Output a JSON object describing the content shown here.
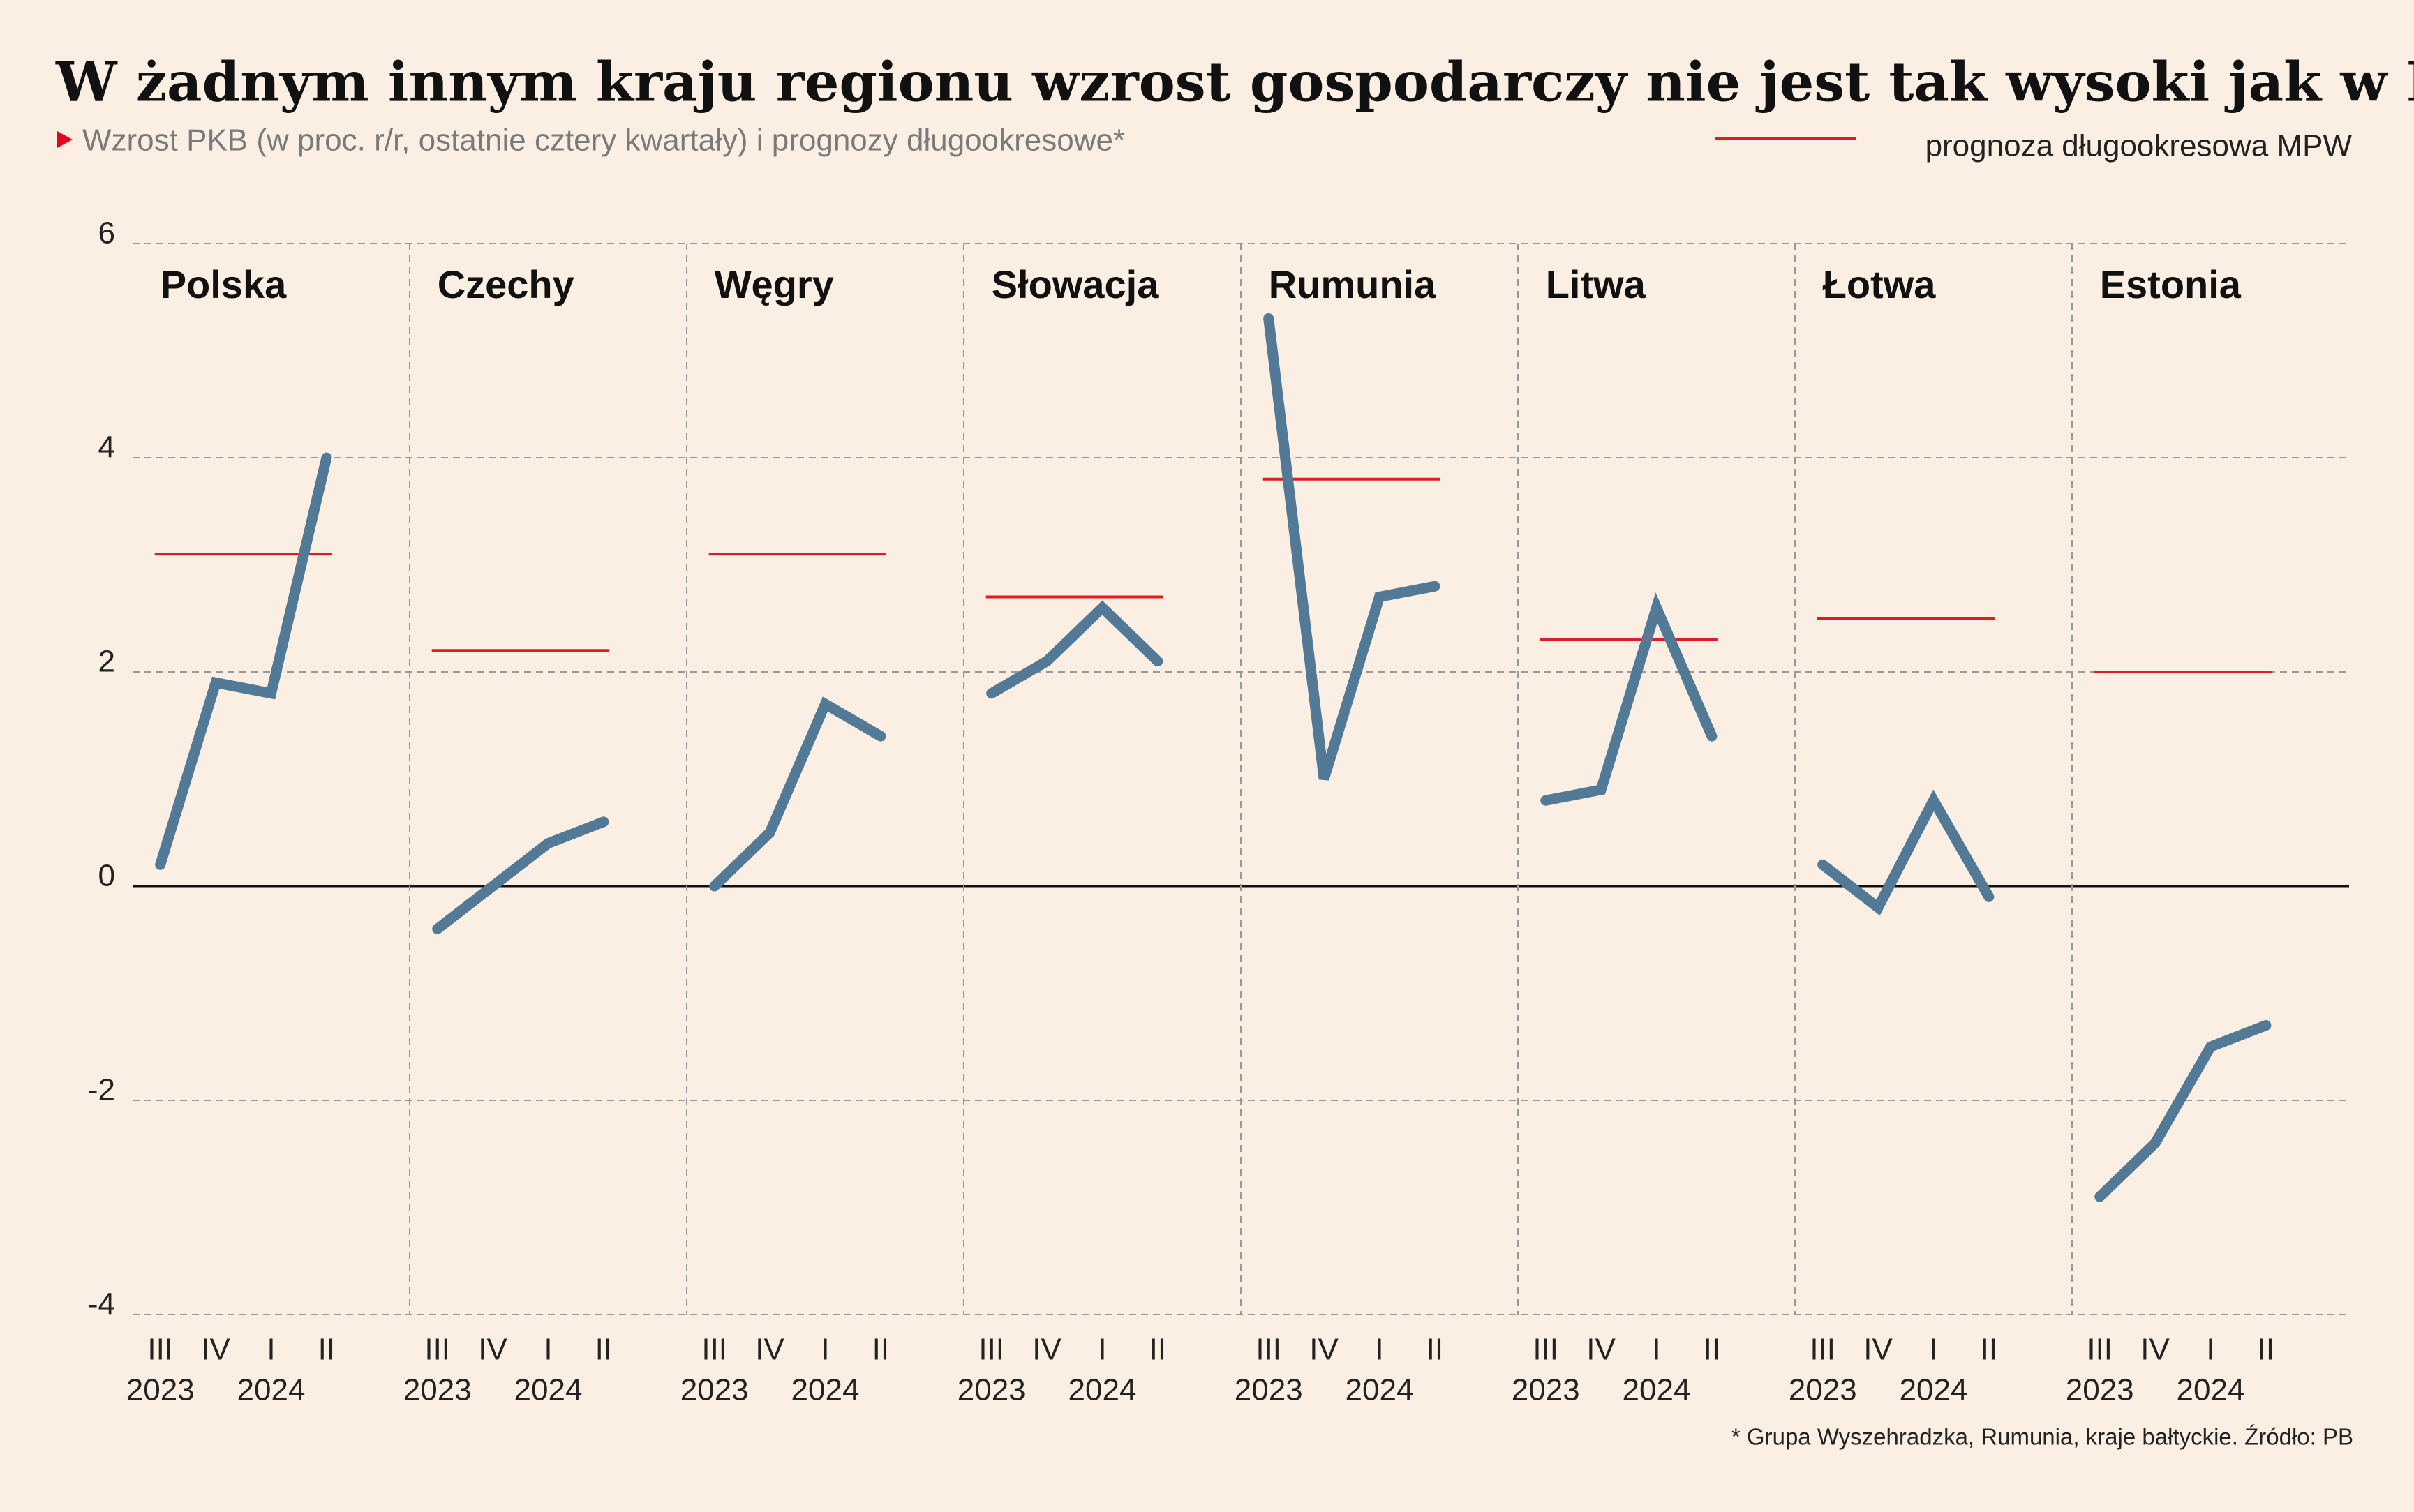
{
  "chart_data": {
    "type": "line",
    "title": "W żadnym innym kraju regionu wzrost gospodarczy nie jest tak wysoki jak w Polsce",
    "subtitle": "Wzrost PKB (w proc. r/r, ostatnie cztery kwartały) i prognozy długookresowe*",
    "forecast_label": "prognoza długookresowa MPW",
    "footnote": "* Grupa Wyszehradzka, Rumunia, kraje bałtyckie. Źródło: PB",
    "categories": [
      "III",
      "IV",
      "I",
      "II"
    ],
    "years": [
      "2023",
      "2024"
    ],
    "ylim": [
      -4,
      6
    ],
    "yticks": [
      -4,
      -2,
      0,
      2,
      4,
      6
    ],
    "grid": true,
    "line_color": "#527a96",
    "forecast_color": "#d9201f",
    "panels": [
      {
        "name": "Polska",
        "values": [
          0.2,
          1.9,
          1.8,
          4.0
        ],
        "forecast": 3.1
      },
      {
        "name": "Czechy",
        "values": [
          -0.4,
          0.0,
          0.4,
          0.6
        ],
        "forecast": 2.2
      },
      {
        "name": "Węgry",
        "values": [
          0.0,
          0.5,
          1.7,
          1.4
        ],
        "forecast": 3.1
      },
      {
        "name": "Słowacja",
        "values": [
          1.8,
          2.1,
          2.6,
          2.1
        ],
        "forecast": 2.7
      },
      {
        "name": "Rumunia",
        "values": [
          5.3,
          1.0,
          2.7,
          2.8
        ],
        "forecast": 3.8
      },
      {
        "name": "Litwa",
        "values": [
          0.8,
          0.9,
          2.6,
          1.4
        ],
        "forecast": 2.3
      },
      {
        "name": "Łotwa",
        "values": [
          0.2,
          -0.2,
          0.8,
          -0.1
        ],
        "forecast": 2.5
      },
      {
        "name": "Estonia",
        "values": [
          -2.9,
          -2.4,
          -1.5,
          -1.3
        ],
        "forecast": 2.0
      }
    ]
  }
}
